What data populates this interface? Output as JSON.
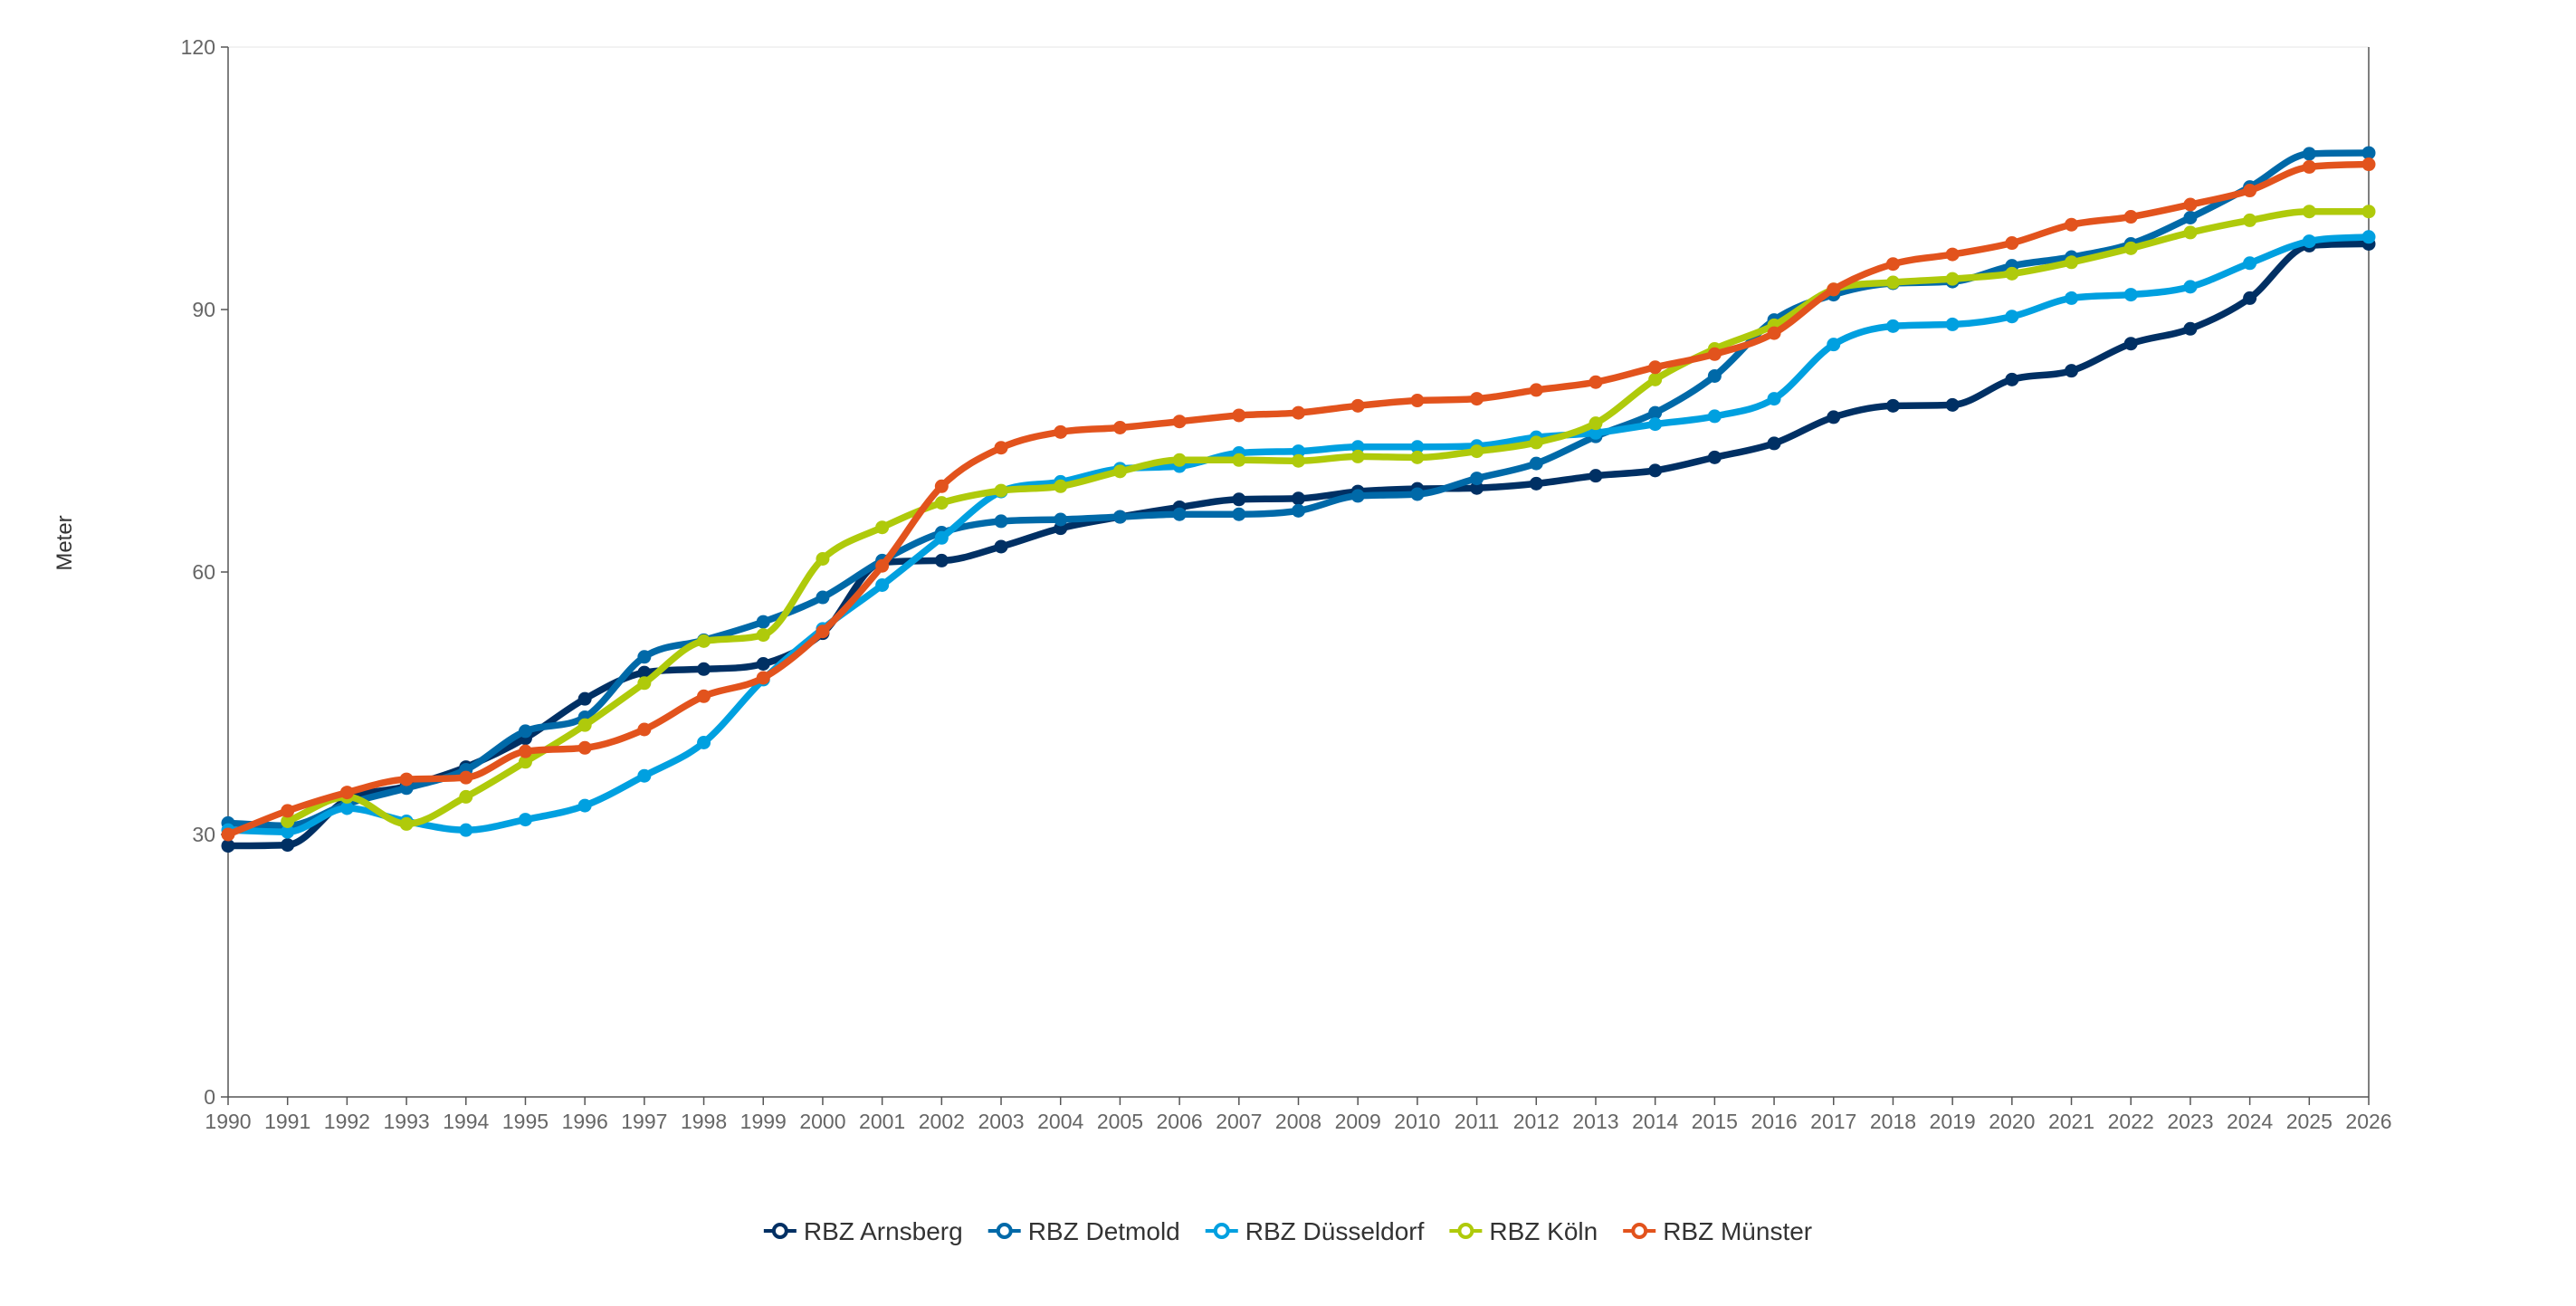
{
  "chart_data": {
    "type": "line",
    "title": "",
    "xlabel": "",
    "ylabel": "Meter",
    "x": [
      1990,
      1991,
      1992,
      1993,
      1994,
      1995,
      1996,
      1997,
      1998,
      1999,
      2000,
      2001,
      2002,
      2003,
      2004,
      2005,
      2006,
      2007,
      2008,
      2009,
      2010,
      2011,
      2012,
      2013,
      2014,
      2015,
      2016,
      2017,
      2018,
      2019,
      2020,
      2021,
      2022,
      2023,
      2024,
      2025,
      2026
    ],
    "xlim": [
      1990,
      2026
    ],
    "ylim": [
      0,
      120
    ],
    "yticks": [
      0,
      30,
      60,
      90,
      120
    ],
    "grid": false,
    "legend_position": "bottom-center",
    "series": [
      {
        "name": "RBZ Arnsberg",
        "color": "#003064",
        "values": [
          28.7,
          28.8,
          34.0,
          35.5,
          37.7,
          41.0,
          45.5,
          48.5,
          48.9,
          49.5,
          53.0,
          61.1,
          61.3,
          62.9,
          65.0,
          66.3,
          67.4,
          68.3,
          68.4,
          69.2,
          69.5,
          69.6,
          70.1,
          71.0,
          71.6,
          73.1,
          74.7,
          77.7,
          79.0,
          79.1,
          82.0,
          83.0,
          86.1,
          87.8,
          91.3,
          97.3,
          97.5
        ]
      },
      {
        "name": "RBZ Detmold",
        "color": "#0069A8",
        "values": [
          31.3,
          31.0,
          33.5,
          35.3,
          37.4,
          41.8,
          43.4,
          50.3,
          52.2,
          54.3,
          57.1,
          61.3,
          64.5,
          65.8,
          66.0,
          66.3,
          66.6,
          66.6,
          67.0,
          68.7,
          68.9,
          70.7,
          72.4,
          75.5,
          78.2,
          82.4,
          88.8,
          91.7,
          93.0,
          93.2,
          95.0,
          96.0,
          97.5,
          100.5,
          104.0,
          107.8,
          107.9
        ]
      },
      {
        "name": "RBZ Düsseldorf",
        "color": "#00A0E0",
        "values": [
          30.5,
          30.3,
          33.0,
          31.5,
          30.5,
          31.7,
          33.3,
          36.7,
          40.5,
          47.7,
          53.5,
          58.5,
          63.9,
          69.2,
          70.3,
          71.8,
          72.1,
          73.6,
          73.8,
          74.3,
          74.3,
          74.4,
          75.4,
          75.9,
          76.9,
          77.8,
          79.8,
          86.0,
          88.1,
          88.3,
          89.2,
          91.3,
          91.7,
          92.6,
          95.3,
          97.8,
          98.3
        ]
      },
      {
        "name": "RBZ Köln",
        "color": "#AFCA0B",
        "values": [
          null,
          31.5,
          34.3,
          31.2,
          34.3,
          38.3,
          42.5,
          47.3,
          52.1,
          52.8,
          61.5,
          65.1,
          67.9,
          69.3,
          69.8,
          71.5,
          72.8,
          72.8,
          72.7,
          73.2,
          73.1,
          73.8,
          74.8,
          77.0,
          82.0,
          85.5,
          88.2,
          92.3,
          93.1,
          93.5,
          94.1,
          95.4,
          97.0,
          98.8,
          100.2,
          101.2,
          101.2
        ]
      },
      {
        "name": "RBZ Münster",
        "color": "#E2531D",
        "values": [
          30.0,
          32.7,
          34.8,
          36.3,
          36.5,
          39.5,
          39.9,
          42.0,
          45.8,
          47.9,
          53.2,
          60.7,
          69.8,
          74.2,
          76.0,
          76.5,
          77.2,
          77.9,
          78.2,
          79.0,
          79.6,
          79.8,
          80.8,
          81.7,
          83.4,
          84.9,
          87.3,
          92.3,
          95.2,
          96.3,
          97.6,
          99.7,
          100.6,
          102.0,
          103.6,
          106.3,
          106.6
        ]
      }
    ]
  }
}
